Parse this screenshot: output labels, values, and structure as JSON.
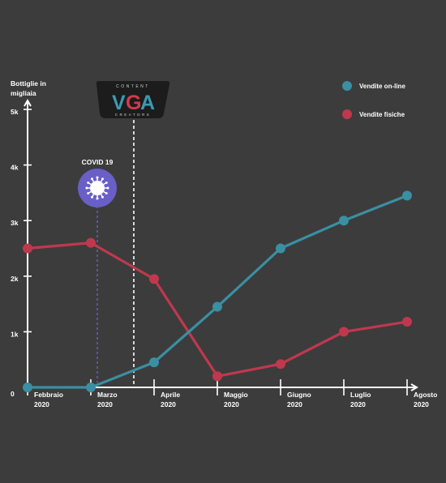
{
  "chart_data": {
    "type": "line",
    "ylabel_lines": [
      "Bottiglie in",
      "migliaia"
    ],
    "y_ticks": [
      {
        "label": "0",
        "value": 0
      },
      {
        "label": "1k",
        "value": 1000
      },
      {
        "label": "2k",
        "value": 2000
      },
      {
        "label": "3k",
        "value": 3000
      },
      {
        "label": "4k",
        "value": 4000
      },
      {
        "label": "5k",
        "value": 5000
      }
    ],
    "ylim": [
      0,
      5000
    ],
    "categories": [
      {
        "month": "Febbraio",
        "year": "2020"
      },
      {
        "month": "Marzo",
        "year": "2020"
      },
      {
        "month": "Aprile",
        "year": "2020"
      },
      {
        "month": "Maggio",
        "year": "2020"
      },
      {
        "month": "Giugno",
        "year": "2020"
      },
      {
        "month": "Luglio",
        "year": "2020"
      },
      {
        "month": "Agosto",
        "year": "2020"
      }
    ],
    "series": [
      {
        "name": "Vendite on-line",
        "color": "#3a8fa3",
        "values": [
          0,
          0,
          450,
          1450,
          2500,
          3000,
          3450
        ]
      },
      {
        "name": "Vendite fisiche",
        "color": "#c0384e",
        "values": [
          2500,
          2600,
          1950,
          200,
          420,
          1000,
          1180
        ]
      }
    ],
    "legend_position": "top-right",
    "annotation": {
      "label": "COVID 19",
      "icon": "virus-icon",
      "color": "#6a5fc7"
    },
    "logo": {
      "letters": "VGA",
      "top_text": "CONTENT",
      "bottom_text": "CREATORS",
      "colors": [
        "#3a9ab4",
        "#d23a4d"
      ]
    }
  }
}
